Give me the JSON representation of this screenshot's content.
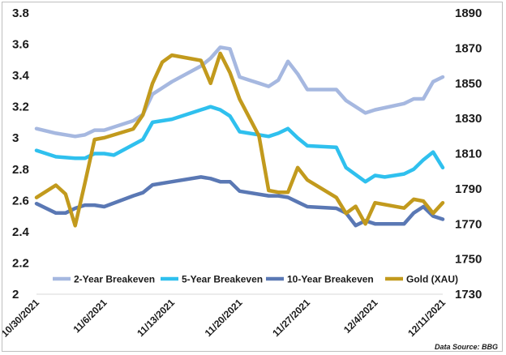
{
  "chart_data": {
    "type": "line",
    "title": "",
    "source": "Data Source: BBG",
    "x_labels": [
      "10/30/2021",
      "11/6/2021",
      "11/13/2021",
      "11/20/2021",
      "11/27/2021",
      "12/4/2021",
      "12/11/2021"
    ],
    "x_range_days": [
      0,
      42
    ],
    "y_left": {
      "ticks": [
        "2",
        "2.2",
        "2.4",
        "2.6",
        "2.8",
        "3",
        "3.2",
        "3.4",
        "3.6",
        "3.8"
      ],
      "range": [
        2,
        3.8
      ]
    },
    "y_right": {
      "ticks": [
        "1730",
        "1750",
        "1770",
        "1790",
        "1810",
        "1830",
        "1850",
        "1870",
        "1890"
      ],
      "range": [
        1730,
        1890
      ]
    },
    "legend_position": "bottom",
    "series": [
      {
        "name": "2-Year Breakeven",
        "axis": "left",
        "color": "#a6b8e0",
        "x": [
          0,
          2,
          4,
          5,
          6,
          7,
          10,
          11,
          12,
          13,
          14,
          17,
          18,
          19,
          20,
          21,
          22,
          23,
          24,
          25,
          26,
          27,
          28,
          31,
          32,
          34,
          35,
          38,
          39,
          40,
          41,
          42
        ],
        "y": [
          3.06,
          3.03,
          3.01,
          3.02,
          3.05,
          3.05,
          3.11,
          3.15,
          3.28,
          3.32,
          3.36,
          3.46,
          3.51,
          3.58,
          3.57,
          3.39,
          3.37,
          3.35,
          3.33,
          3.37,
          3.49,
          3.41,
          3.31,
          3.31,
          3.24,
          3.16,
          3.18,
          3.22,
          3.25,
          3.25,
          3.36,
          3.39
        ]
      },
      {
        "name": "5-Year Breakeven",
        "axis": "left",
        "color": "#2fc0ee",
        "x": [
          0,
          2,
          4,
          5,
          6,
          7,
          8,
          11,
          12,
          14,
          17,
          18,
          19,
          20,
          21,
          24,
          25,
          26,
          27,
          28,
          31,
          32,
          34,
          35,
          36,
          37,
          38,
          39,
          40,
          41,
          42
        ],
        "y": [
          2.92,
          2.88,
          2.87,
          2.87,
          2.9,
          2.9,
          2.89,
          2.99,
          3.1,
          3.12,
          3.18,
          3.2,
          3.18,
          3.14,
          3.04,
          3.01,
          3.03,
          3.06,
          3.0,
          2.95,
          2.94,
          2.81,
          2.72,
          2.76,
          2.75,
          2.76,
          2.77,
          2.8,
          2.86,
          2.91,
          2.81
        ]
      },
      {
        "name": "10-Year Breakeven",
        "axis": "left",
        "color": "#5a78b4",
        "x": [
          0,
          2,
          3,
          4,
          5,
          6,
          7,
          10,
          11,
          12,
          14,
          17,
          18,
          19,
          20,
          21,
          24,
          25,
          26,
          27,
          28,
          31,
          32,
          33,
          34,
          35,
          38,
          39,
          40,
          41,
          42
        ],
        "y": [
          2.58,
          2.52,
          2.52,
          2.55,
          2.57,
          2.57,
          2.56,
          2.63,
          2.65,
          2.7,
          2.72,
          2.75,
          2.74,
          2.72,
          2.72,
          2.66,
          2.63,
          2.63,
          2.62,
          2.59,
          2.56,
          2.55,
          2.52,
          2.44,
          2.47,
          2.45,
          2.45,
          2.52,
          2.56,
          2.5,
          2.48
        ]
      },
      {
        "name": "Gold (XAU)",
        "axis": "right",
        "color": "#c29a1d",
        "x": [
          0,
          2,
          3,
          4,
          5,
          6,
          7,
          10,
          11,
          12,
          13,
          14,
          17,
          18,
          19,
          20,
          21,
          23,
          24,
          25,
          26,
          27,
          28,
          31,
          32,
          33,
          34,
          35,
          38,
          39,
          40,
          41,
          42
        ],
        "y": [
          1785,
          1792,
          1787,
          1769,
          1793,
          1818,
          1819,
          1824,
          1832,
          1850,
          1862,
          1866,
          1863,
          1850,
          1867,
          1856,
          1841,
          1820,
          1789,
          1788,
          1788,
          1802,
          1795,
          1785,
          1776,
          1780,
          1770,
          1782,
          1779,
          1784,
          1783,
          1776,
          1782
        ]
      }
    ]
  }
}
